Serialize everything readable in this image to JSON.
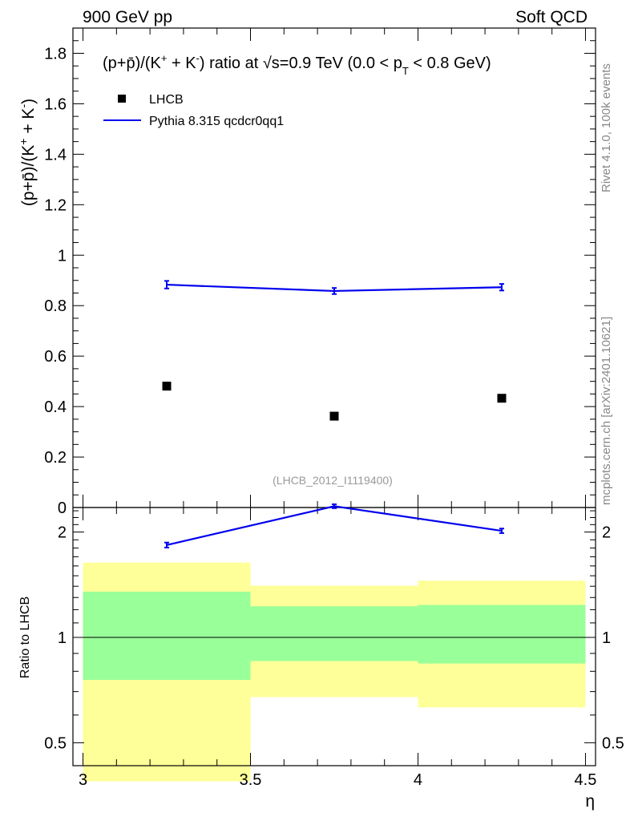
{
  "header": {
    "left": "900 GeV pp",
    "right": "Soft QCD"
  },
  "side_labels": {
    "rivet": "Rivet 4.1.0,  100k events",
    "mcplots": "mcplots.cern.ch [arXiv:2401.10621]"
  },
  "chart_data": [
    {
      "type": "scatter",
      "panel": "main",
      "title": "(p+p̄)/(K⁺ + K⁻) ratio at √s=0.9 TeV (0.0 < pT < 0.8 GeV)",
      "title_parts": {
        "pre": "(p+p̄)/(K",
        "sup1": "+",
        "mid1": " + K",
        "sup2": "-",
        "mid2": ") ratio at ",
        "sqrt": "√s",
        "mid3": "=0.9 TeV (0.0 < p",
        "sub": "T",
        "post": " < 0.8 GeV)"
      },
      "ylabel": "(p+p̄)/(K⁺ + K⁻)",
      "ylabel_parts": {
        "pre": "(p+p̄)/(K",
        "sup1": "+",
        "mid": " + K",
        "sup2": "-",
        "post": ")"
      },
      "xlim": [
        2.97,
        4.53
      ],
      "ylim": [
        0,
        1.9
      ],
      "yticks": [
        0,
        0.2,
        0.4,
        0.6,
        0.8,
        1,
        1.2,
        1.4,
        1.6,
        1.8
      ],
      "ytick_labels": [
        "0",
        "0.2",
        "0.4",
        "0.6",
        "0.8",
        "1",
        "1.2",
        "1.4",
        "1.6",
        "1.8"
      ],
      "legend": [
        {
          "name": "LHCB",
          "marker": "square",
          "color": "#000000"
        },
        {
          "name": "Pythia 8.315 qcdcr0qq1",
          "marker": "line",
          "color": "#0000ee"
        }
      ],
      "series": [
        {
          "name": "LHCB",
          "x": [
            3.25,
            3.75,
            4.25
          ],
          "y": [
            0.481,
            0.362,
            0.433
          ]
        },
        {
          "name": "Pythia 8.315 qcdcr0qq1",
          "x": [
            3.25,
            3.75,
            4.25
          ],
          "y": [
            0.883,
            0.858,
            0.873
          ],
          "err": [
            0.015,
            0.012,
            0.013
          ]
        }
      ],
      "annotation": "(LHCB_2012_I1119400)"
    },
    {
      "type": "line",
      "panel": "ratio",
      "ylabel": "Ratio to LHCB",
      "xlabel": "η",
      "scale": "log",
      "xlim": [
        2.97,
        4.53
      ],
      "ylim": [
        0.43,
        2.35
      ],
      "xticks": [
        3,
        3.5,
        4,
        4.5
      ],
      "xtick_labels": [
        "3",
        "3.5",
        "4",
        "4.5"
      ],
      "yticks": [
        0.5,
        1,
        2
      ],
      "ytick_labels": [
        "0.5",
        "1",
        "2"
      ],
      "reference_line": 1,
      "bands": [
        {
          "x": [
            3.0,
            3.5
          ],
          "inner": [
            0.756,
            1.351
          ],
          "outer": [
            0.388,
            1.636
          ]
        },
        {
          "x": [
            3.5,
            4.0
          ],
          "inner": [
            0.856,
            1.227
          ],
          "outer": [
            0.675,
            1.405
          ]
        },
        {
          "x": [
            4.0,
            4.5
          ],
          "inner": [
            0.842,
            1.238
          ],
          "outer": [
            0.631,
            1.452
          ]
        }
      ],
      "series": [
        {
          "name": "Pythia 8.315 qcdcr0qq1 / LHCB",
          "x": [
            3.25,
            3.75,
            4.25
          ],
          "y": [
            1.836,
            2.37,
            2.016
          ],
          "err": [
            0.03,
            0.03,
            0.03
          ]
        }
      ]
    }
  ],
  "colors": {
    "mc_line": "#0000ee",
    "data_marker": "#000000",
    "band_inner": "#99ff99",
    "band_outer": "#ffff99",
    "annotation": "#999999",
    "side_text": "#888888"
  }
}
